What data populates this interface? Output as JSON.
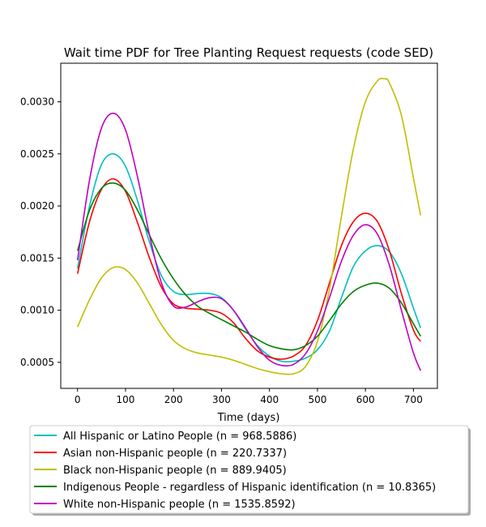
{
  "chart_data": {
    "type": "line",
    "title": "Wait time PDF for Tree Planting Request  requests (code SED)",
    "xlabel": "Time (days)",
    "ylabel": "",
    "xlim": [
      -35,
      750
    ],
    "ylim": [
      0.00025,
      0.00337
    ],
    "xticks": [
      0,
      100,
      200,
      300,
      400,
      500,
      600,
      700
    ],
    "xtick_labels": [
      "0",
      "100",
      "200",
      "300",
      "400",
      "500",
      "600",
      "700"
    ],
    "yticks": [
      0.0005,
      0.001,
      0.0015,
      0.002,
      0.0025,
      0.003
    ],
    "ytick_labels": [
      "0.0005",
      "0.0010",
      "0.0015",
      "0.0020",
      "0.0025",
      "0.0030"
    ],
    "grid": false,
    "legend_position": "below plot",
    "series": [
      {
        "name": "All Hispanic or Latino People (n = 968.5886)",
        "color": "#00bfbf",
        "x": [
          0,
          25,
          50,
          75,
          100,
          125,
          150,
          175,
          200,
          225,
          250,
          275,
          300,
          325,
          350,
          375,
          400,
          425,
          450,
          475,
          500,
          525,
          550,
          575,
          600,
          625,
          650,
          675,
          700,
          715
        ],
        "y": [
          0.0014,
          0.002,
          0.0024,
          0.0025,
          0.00238,
          0.00205,
          0.00165,
          0.00133,
          0.00118,
          0.00115,
          0.00116,
          0.00116,
          0.00112,
          0.001,
          0.00082,
          0.00066,
          0.00056,
          0.00051,
          0.00051,
          0.00054,
          0.00062,
          0.0008,
          0.00112,
          0.00142,
          0.00157,
          0.00162,
          0.00156,
          0.00135,
          0.00102,
          0.00083
        ]
      },
      {
        "name": "Asian non-Hispanic people (n = 220.7337)",
        "color": "#ff0000",
        "x": [
          0,
          25,
          50,
          75,
          100,
          125,
          150,
          175,
          200,
          225,
          250,
          275,
          300,
          325,
          350,
          375,
          400,
          425,
          450,
          475,
          500,
          525,
          550,
          575,
          600,
          625,
          650,
          675,
          700,
          715
        ],
        "y": [
          0.00135,
          0.00185,
          0.00216,
          0.00226,
          0.00214,
          0.00184,
          0.0015,
          0.00122,
          0.00106,
          0.00102,
          0.00101,
          0.001,
          0.00097,
          0.00088,
          0.00073,
          0.00061,
          0.00055,
          0.00053,
          0.00056,
          0.00066,
          0.0009,
          0.00126,
          0.00162,
          0.00185,
          0.00193,
          0.00185,
          0.00157,
          0.00116,
          0.00081,
          0.0007
        ]
      },
      {
        "name": "Black non-Hispanic people (n = 889.9405)",
        "color": "#bfbf00",
        "x": [
          0,
          25,
          50,
          75,
          100,
          125,
          150,
          175,
          200,
          225,
          250,
          275,
          300,
          325,
          350,
          375,
          400,
          425,
          450,
          475,
          500,
          525,
          550,
          575,
          600,
          625,
          640,
          650,
          675,
          700,
          715
        ],
        "y": [
          0.00084,
          0.0011,
          0.00131,
          0.00141,
          0.00139,
          0.00126,
          0.00106,
          0.00086,
          0.00071,
          0.00063,
          0.00059,
          0.00057,
          0.00055,
          0.00052,
          0.00048,
          0.00044,
          0.00041,
          0.00039,
          0.00039,
          0.00046,
          0.0007,
          0.0012,
          0.0019,
          0.00255,
          0.003,
          0.0032,
          0.00322,
          0.00318,
          0.00287,
          0.00227,
          0.00191
        ]
      },
      {
        "name": "Indigenous People - regardless of Hispanic identification (n = 10.8365)",
        "color": "#008000",
        "x": [
          0,
          25,
          50,
          75,
          100,
          125,
          150,
          175,
          200,
          225,
          250,
          275,
          300,
          325,
          350,
          375,
          400,
          425,
          450,
          475,
          500,
          525,
          550,
          575,
          600,
          625,
          650,
          675,
          700,
          715
        ],
        "y": [
          0.00157,
          0.00196,
          0.00217,
          0.00222,
          0.00215,
          0.00196,
          0.00172,
          0.00149,
          0.0013,
          0.00115,
          0.00104,
          0.00097,
          0.00091,
          0.00085,
          0.00079,
          0.00072,
          0.00066,
          0.00063,
          0.00062,
          0.00066,
          0.00075,
          0.0009,
          0.00106,
          0.00118,
          0.00124,
          0.00126,
          0.00121,
          0.00107,
          0.00087,
          0.00075
        ]
      },
      {
        "name": "White non-Hispanic people (n = 1535.8592)",
        "color": "#bf00bf",
        "x": [
          0,
          25,
          50,
          75,
          100,
          125,
          150,
          175,
          200,
          225,
          250,
          275,
          300,
          325,
          350,
          375,
          400,
          425,
          450,
          475,
          500,
          525,
          550,
          575,
          600,
          625,
          650,
          675,
          700,
          715
        ],
        "y": [
          0.00148,
          0.00225,
          0.00275,
          0.00289,
          0.00273,
          0.00228,
          0.00172,
          0.00126,
          0.00104,
          0.00103,
          0.00108,
          0.00112,
          0.00111,
          0.001,
          0.00083,
          0.00065,
          0.00052,
          0.00047,
          0.00048,
          0.00058,
          0.0008,
          0.00112,
          0.00147,
          0.00172,
          0.00182,
          0.00173,
          0.00143,
          0.001,
          0.00059,
          0.00042
        ]
      }
    ]
  }
}
